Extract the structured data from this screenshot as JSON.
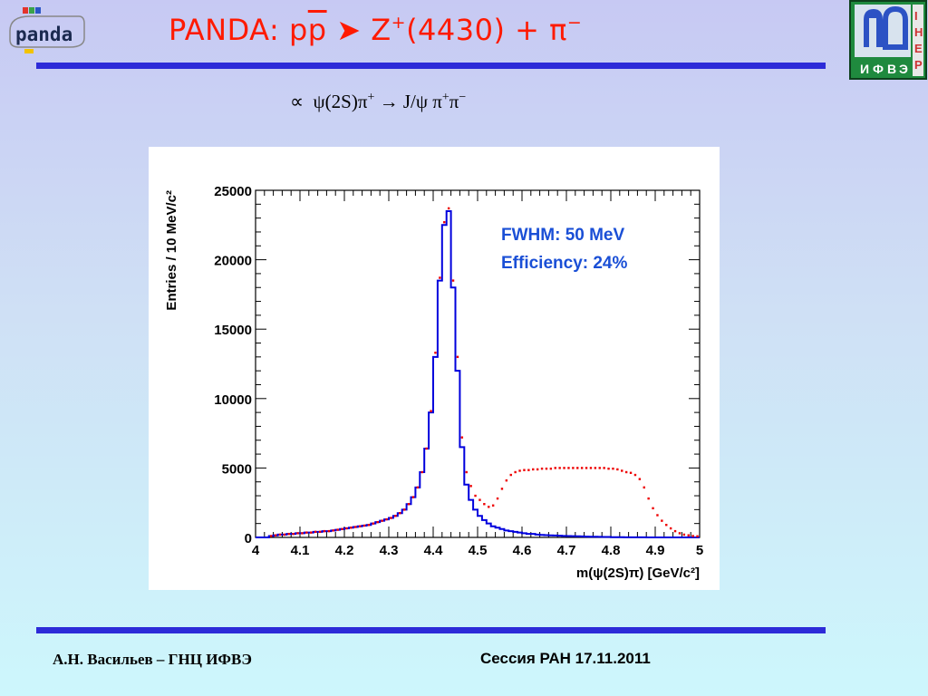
{
  "slide": {
    "title": {
      "prefix": "PANDA: p",
      "pbar": "p",
      "arrow": "➤",
      "z": "Z",
      "z_charge": "+",
      "z_mass": "(4430) + π",
      "pi_charge": "−"
    },
    "formula": {
      "prop": "∝",
      "psi2s": "ψ(2S)π",
      "plus": "+",
      "rest": "→ J/ψ π",
      "plus2": "+",
      "pi": "π",
      "minus": "−"
    },
    "footer_left": "А.Н. Васильев – ГНЦ ИФВЭ",
    "footer_right": "Сессия РАН  17.11.2011",
    "logo_left": {
      "text": "panda",
      "icon": "panda-logo"
    },
    "logo_right": {
      "icon": "ihep-logo",
      "letters": [
        "И",
        "Ф",
        "В",
        "Э"
      ],
      "side_letters": [
        "I",
        "H",
        "E",
        "P"
      ]
    },
    "colors": {
      "title": "#ff1a00",
      "rule": "#2d2bd8",
      "annotation": "#1a4fd6"
    }
  },
  "chart_data": {
    "type": "histogram",
    "xlabel": "m(ψ(2S)π) [GeV/c²]",
    "ylabel": "Entries / 10 MeV/c²",
    "xlim": [
      4.0,
      5.0
    ],
    "ylim": [
      0,
      25000
    ],
    "xticks": [
      4,
      4.1,
      4.2,
      4.3,
      4.4,
      4.5,
      4.6,
      4.7,
      4.8,
      4.9,
      5
    ],
    "xtick_labels": [
      "4",
      "4.1",
      "4.2",
      "4.3",
      "4.4",
      "4.5",
      "4.6",
      "4.7",
      "4.8",
      "4.9",
      "5"
    ],
    "yticks": [
      0,
      5000,
      10000,
      15000,
      20000,
      25000
    ],
    "ytick_labels": [
      "0",
      "5000",
      "10000",
      "15000",
      "20000",
      "25000"
    ],
    "annotations": [
      "FWHM: 50 MeV",
      "Efficiency: 24%"
    ],
    "bin_width": 0.01,
    "x": [
      4.0,
      4.01,
      4.02,
      4.03,
      4.04,
      4.05,
      4.06,
      4.07,
      4.08,
      4.09,
      4.1,
      4.11,
      4.12,
      4.13,
      4.14,
      4.15,
      4.16,
      4.17,
      4.18,
      4.19,
      4.2,
      4.21,
      4.22,
      4.23,
      4.24,
      4.25,
      4.26,
      4.27,
      4.28,
      4.29,
      4.3,
      4.31,
      4.32,
      4.33,
      4.34,
      4.35,
      4.36,
      4.37,
      4.38,
      4.39,
      4.4,
      4.41,
      4.42,
      4.43,
      4.44,
      4.45,
      4.46,
      4.47,
      4.48,
      4.49,
      4.5,
      4.51,
      4.52,
      4.53,
      4.54,
      4.55,
      4.56,
      4.57,
      4.58,
      4.59,
      4.6,
      4.61,
      4.62,
      4.63,
      4.64,
      4.65,
      4.66,
      4.67,
      4.68,
      4.69,
      4.7,
      4.71,
      4.72,
      4.73,
      4.74,
      4.75,
      4.76,
      4.77,
      4.78,
      4.79,
      4.8,
      4.81,
      4.82,
      4.83,
      4.84,
      4.85,
      4.86,
      4.87,
      4.88,
      4.89,
      4.9,
      4.91,
      4.92,
      4.93,
      4.94,
      4.95,
      4.96,
      4.97,
      4.98,
      4.99
    ],
    "series": [
      {
        "color": "#0000dd",
        "style": "step",
        "values": [
          0,
          0,
          0,
          100,
          150,
          200,
          200,
          250,
          250,
          300,
          300,
          350,
          350,
          400,
          400,
          450,
          450,
          500,
          550,
          600,
          650,
          700,
          750,
          800,
          850,
          900,
          1000,
          1100,
          1200,
          1300,
          1400,
          1550,
          1750,
          2000,
          2400,
          2900,
          3600,
          4700,
          6400,
          9000,
          13000,
          18500,
          22500,
          23500,
          18000,
          12000,
          6500,
          3800,
          2700,
          2000,
          1550,
          1250,
          1000,
          800,
          700,
          600,
          500,
          450,
          400,
          350,
          300,
          250,
          250,
          200,
          180,
          160,
          150,
          140,
          120,
          110,
          100,
          90,
          80,
          70,
          60,
          50,
          50,
          40,
          30,
          30,
          20,
          20,
          15,
          10,
          10,
          10,
          5,
          5,
          0,
          0,
          0,
          0,
          0,
          0,
          0,
          0,
          0,
          0,
          0,
          0
        ]
      },
      {
        "color": "#ee0000",
        "style": "markers",
        "values": [
          0,
          0,
          0,
          100,
          150,
          200,
          200,
          250,
          250,
          300,
          300,
          350,
          350,
          400,
          400,
          450,
          450,
          500,
          550,
          600,
          650,
          700,
          750,
          800,
          850,
          900,
          1000,
          1100,
          1200,
          1300,
          1400,
          1550,
          1750,
          2000,
          2400,
          2900,
          3600,
          4700,
          6400,
          9100,
          13300,
          18700,
          22700,
          23700,
          18500,
          13000,
          7200,
          4700,
          3700,
          3000,
          2700,
          2400,
          2200,
          2300,
          2800,
          3500,
          4100,
          4500,
          4700,
          4800,
          4850,
          4850,
          4900,
          4900,
          4950,
          4950,
          4950,
          5000,
          5000,
          5000,
          5000,
          5000,
          5000,
          5000,
          5000,
          5000,
          5000,
          5000,
          5000,
          4950,
          4950,
          4900,
          4800,
          4700,
          4650,
          4500,
          4200,
          3600,
          2800,
          2100,
          1600,
          1200,
          900,
          650,
          450,
          300,
          200,
          150,
          100,
          80
        ]
      }
    ]
  }
}
